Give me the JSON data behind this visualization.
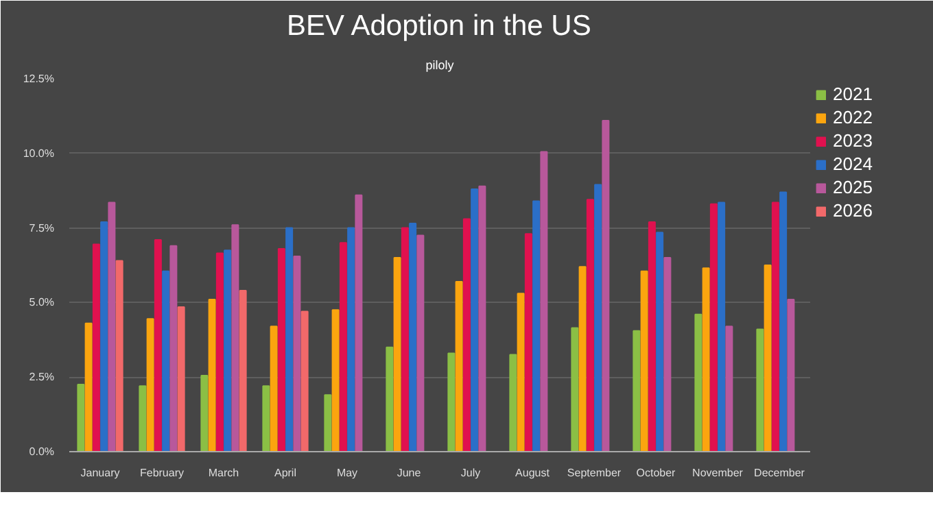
{
  "chart_data": {
    "type": "bar",
    "title": "BEV Adoption in the US",
    "subtitle": "piloly",
    "categories": [
      "January",
      "February",
      "March",
      "April",
      "May",
      "June",
      "July",
      "August",
      "September",
      "October",
      "November",
      "December"
    ],
    "series": [
      {
        "name": "2021",
        "color": "#8bbf45",
        "values": [
          2.25,
          2.2,
          2.55,
          2.2,
          1.9,
          3.5,
          3.3,
          3.25,
          4.15,
          4.05,
          4.6,
          4.1
        ]
      },
      {
        "name": "2022",
        "color": "#fba50f",
        "values": [
          4.3,
          4.45,
          5.1,
          4.2,
          4.75,
          6.5,
          5.7,
          5.3,
          6.2,
          6.05,
          6.15,
          6.25
        ]
      },
      {
        "name": "2023",
        "color": "#e0114f",
        "values": [
          6.95,
          7.1,
          6.65,
          6.8,
          7.0,
          7.5,
          7.8,
          7.3,
          8.45,
          7.7,
          8.3,
          8.35
        ]
      },
      {
        "name": "2024",
        "color": "#2b6fc8",
        "values": [
          7.7,
          6.05,
          6.75,
          7.5,
          7.5,
          7.65,
          8.8,
          8.4,
          8.95,
          7.35,
          8.35,
          8.7
        ]
      },
      {
        "name": "2025",
        "color": "#b8589b",
        "values": [
          8.35,
          6.9,
          7.6,
          6.55,
          8.6,
          7.25,
          8.9,
          10.05,
          11.1,
          6.5,
          4.2,
          5.1
        ]
      },
      {
        "name": "2026",
        "color": "#f2696a",
        "values": [
          6.4,
          4.85,
          5.4,
          4.7,
          null,
          null,
          null,
          null,
          null,
          null,
          null,
          null
        ]
      }
    ],
    "ylim": [
      0,
      12.5
    ],
    "yticks": [
      {
        "value": 0,
        "label": "0.0%"
      },
      {
        "value": 2.5,
        "label": "2.5%"
      },
      {
        "value": 5,
        "label": "5.0%"
      },
      {
        "value": 7.5,
        "label": "7.5%"
      },
      {
        "value": 10,
        "label": "10.0%"
      },
      {
        "value": 12.5,
        "label": "12.5%"
      }
    ],
    "grid": "y",
    "legend": "right"
  }
}
